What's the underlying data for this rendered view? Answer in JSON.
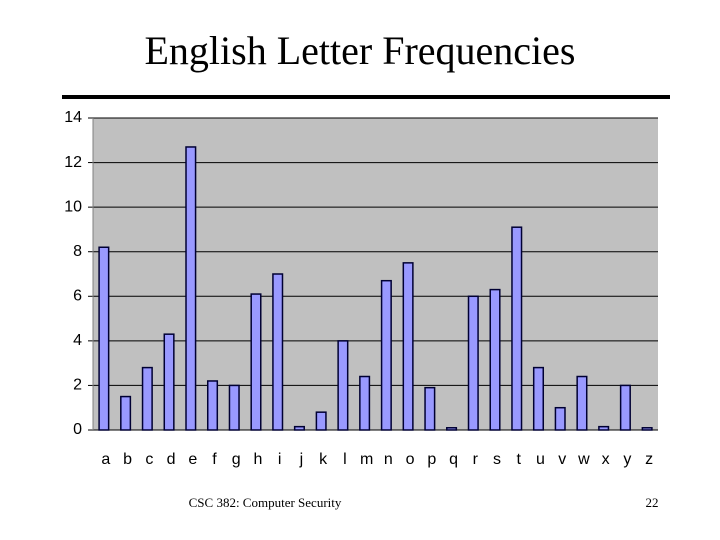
{
  "chart_data": {
    "type": "bar",
    "title": "English Letter Frequencies",
    "categories": [
      "a",
      "b",
      "c",
      "d",
      "e",
      "f",
      "g",
      "h",
      "i",
      "j",
      "k",
      "l",
      "m",
      "n",
      "o",
      "p",
      "q",
      "r",
      "s",
      "t",
      "u",
      "v",
      "w",
      "x",
      "y",
      "z"
    ],
    "values": [
      8.2,
      1.5,
      2.8,
      4.3,
      12.7,
      2.2,
      2.0,
      6.1,
      7.0,
      0.15,
      0.8,
      4.0,
      2.4,
      6.7,
      7.5,
      1.9,
      0.1,
      6.0,
      6.3,
      9.1,
      2.8,
      1.0,
      2.4,
      0.15,
      2.0,
      0.1
    ],
    "color": "#9999ff",
    "ylim": [
      0,
      14
    ],
    "yticks": [
      0,
      2,
      4,
      6,
      8,
      10,
      12,
      14
    ],
    "grid": true
  },
  "footer": {
    "course": "CSC 382: Computer Security",
    "page": "22"
  }
}
